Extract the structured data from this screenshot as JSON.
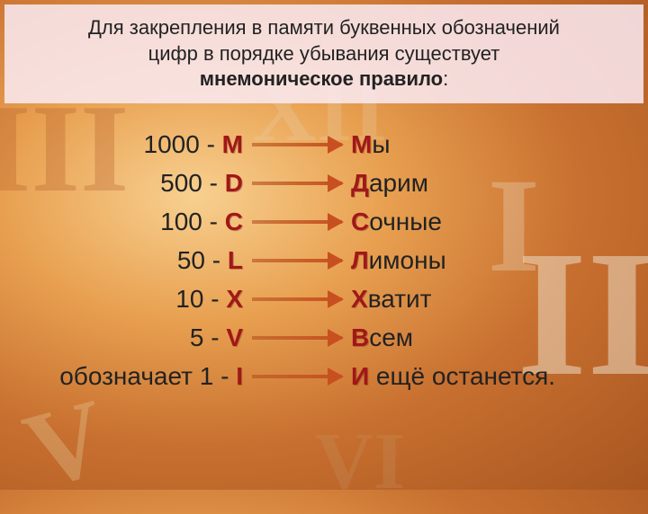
{
  "header": {
    "line1": "Для закрепления в памяти буквенных обозначений",
    "line2": "цифр в порядке убывания существует",
    "bold_line": "мнемоническое правило",
    "colon": ":"
  },
  "rows": [
    {
      "prefix": "1000 - ",
      "roman": "M",
      "first": "М",
      "rest": "ы"
    },
    {
      "prefix": "500 - ",
      "roman": "D",
      "first": "Д",
      "rest": "арим"
    },
    {
      "prefix": "100 - ",
      "roman": "C",
      "first": "С",
      "rest": "очные"
    },
    {
      "prefix": "50 - ",
      "roman": "L",
      "first": "Л",
      "rest": "имоны"
    },
    {
      "prefix": "10 - ",
      "roman": "X",
      "first": "Х",
      "rest": "ватит"
    },
    {
      "prefix": "5 - ",
      "roman": "V",
      "first": "В",
      "rest": "сем"
    },
    {
      "prefix": "обозначает 1 - ",
      "roman": "I",
      "first": "И",
      "rest": " ещё останется."
    }
  ],
  "bg_numerals": [
    "III",
    "V",
    "II",
    "XII",
    "VI",
    "I"
  ],
  "colors": {
    "dark_red": "#a01818",
    "text": "#222222",
    "header_bg": "rgba(250, 235, 245, 0.85)"
  }
}
